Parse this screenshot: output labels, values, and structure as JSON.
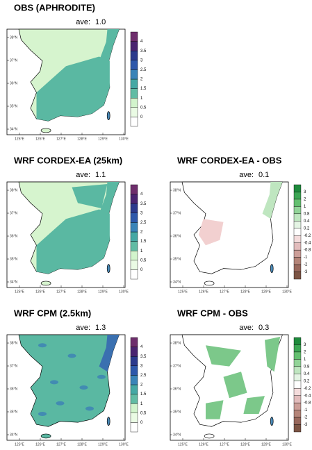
{
  "panels": [
    {
      "title": "OBS (APHRODITE)",
      "ave_label": "ave:",
      "ave": "1.0",
      "colorbar": "precip"
    },
    {
      "title": "WRF CORDEX-EA (25km)",
      "ave_label": "ave:",
      "ave": "1.1",
      "colorbar": "precip"
    },
    {
      "title": "WRF CORDEX-EA - OBS",
      "ave_label": "ave:",
      "ave": "0.1",
      "colorbar": "diff"
    },
    {
      "title": "WRF CPM (2.5km)",
      "ave_label": "ave:",
      "ave": "1.3",
      "colorbar": "precip"
    },
    {
      "title": "WRF CPM - OBS",
      "ave_label": "ave:",
      "ave": "0.3",
      "colorbar": "diff"
    }
  ],
  "colorbars": {
    "precip": [
      "0",
      "0.5",
      "1",
      "1.5",
      "2",
      "2.5",
      "3",
      "3.5",
      "4"
    ],
    "diff": [
      "3",
      "2",
      "1",
      "0.8",
      "0.4",
      "0.2",
      "-0.2",
      "-0.4",
      "-0.8",
      "-1",
      "-2",
      "-3"
    ]
  },
  "lat_labels": [
    "38°N",
    "37°N",
    "36°N",
    "35°N",
    "34°N"
  ],
  "lon_labels": [
    "125°E",
    "126°E",
    "127°E",
    "128°E",
    "129°E",
    "130°E"
  ]
}
